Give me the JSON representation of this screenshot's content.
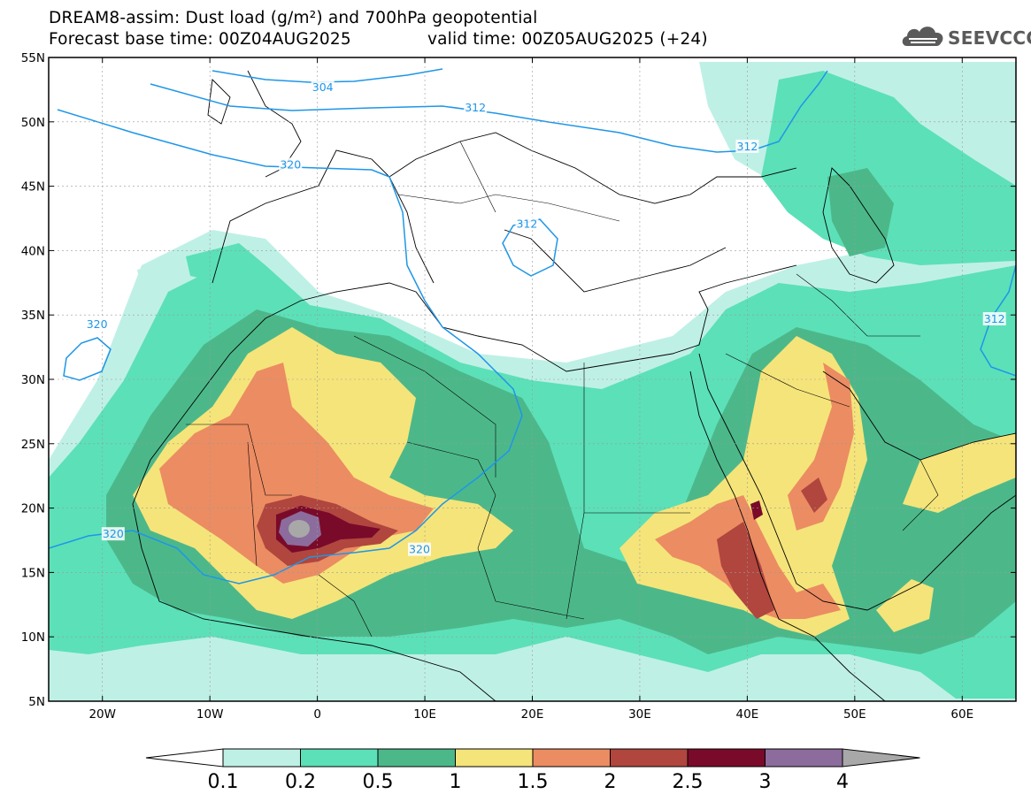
{
  "title": {
    "line1": "DREAM8-assim: Dust load (g/m²) and 700hPa geopotential",
    "line2_base": "Forecast base time: 00Z04AUG2025",
    "line2_valid": "valid time: 00Z05AUG2025 (+24)"
  },
  "logo": {
    "text": "SEEVCCC",
    "icon": "cloud-icon"
  },
  "map": {
    "lon_range": [
      -25,
      65
    ],
    "lat_range": [
      5,
      55
    ],
    "lon_ticks": [
      {
        "value": -20,
        "label": "20W"
      },
      {
        "value": -10,
        "label": "10W"
      },
      {
        "value": 0,
        "label": "0"
      },
      {
        "value": 10,
        "label": "10E"
      },
      {
        "value": 20,
        "label": "20E"
      },
      {
        "value": 30,
        "label": "30E"
      },
      {
        "value": 40,
        "label": "40E"
      },
      {
        "value": 50,
        "label": "50E"
      },
      {
        "value": 60,
        "label": "60E"
      }
    ],
    "lat_ticks": [
      {
        "value": 55,
        "label": "55N"
      },
      {
        "value": 50,
        "label": "50N"
      },
      {
        "value": 45,
        "label": "45N"
      },
      {
        "value": 40,
        "label": "40N"
      },
      {
        "value": 35,
        "label": "35N"
      },
      {
        "value": 30,
        "label": "30N"
      },
      {
        "value": 25,
        "label": "25N"
      },
      {
        "value": 20,
        "label": "20N"
      },
      {
        "value": 15,
        "label": "15N"
      },
      {
        "value": 10,
        "label": "10N"
      },
      {
        "value": 5,
        "label": "5N"
      }
    ],
    "grid": true,
    "contour_labels": [
      {
        "text": "304",
        "lon": 0.5,
        "lat": 52.6
      },
      {
        "text": "312",
        "lon": 14.7,
        "lat": 51.0
      },
      {
        "text": "312",
        "lon": 40.0,
        "lat": 48.0
      },
      {
        "text": "320",
        "lon": -2.5,
        "lat": 46.6
      },
      {
        "text": "312",
        "lon": 19.5,
        "lat": 42.0
      },
      {
        "text": "320",
        "lon": -20.5,
        "lat": 34.2
      },
      {
        "text": "320",
        "lon": -19.0,
        "lat": 17.9
      },
      {
        "text": "320",
        "lon": 9.5,
        "lat": 16.7
      },
      {
        "text": "312",
        "lon": 63.0,
        "lat": 34.6
      }
    ],
    "colors": {
      "contour": "#1e96e8",
      "coast": "#000000"
    }
  },
  "colorbar": {
    "labels": [
      "0.1",
      "0.2",
      "0.5",
      "1",
      "1.5",
      "2",
      "2.5",
      "3",
      "4"
    ],
    "colors": [
      "#bff0e6",
      "#5ce0b8",
      "#4cb88a",
      "#f5e47a",
      "#ec8c62",
      "#b0463e",
      "#7a0a2a",
      "#8c6c9c",
      "#a8a8a8"
    ]
  }
}
